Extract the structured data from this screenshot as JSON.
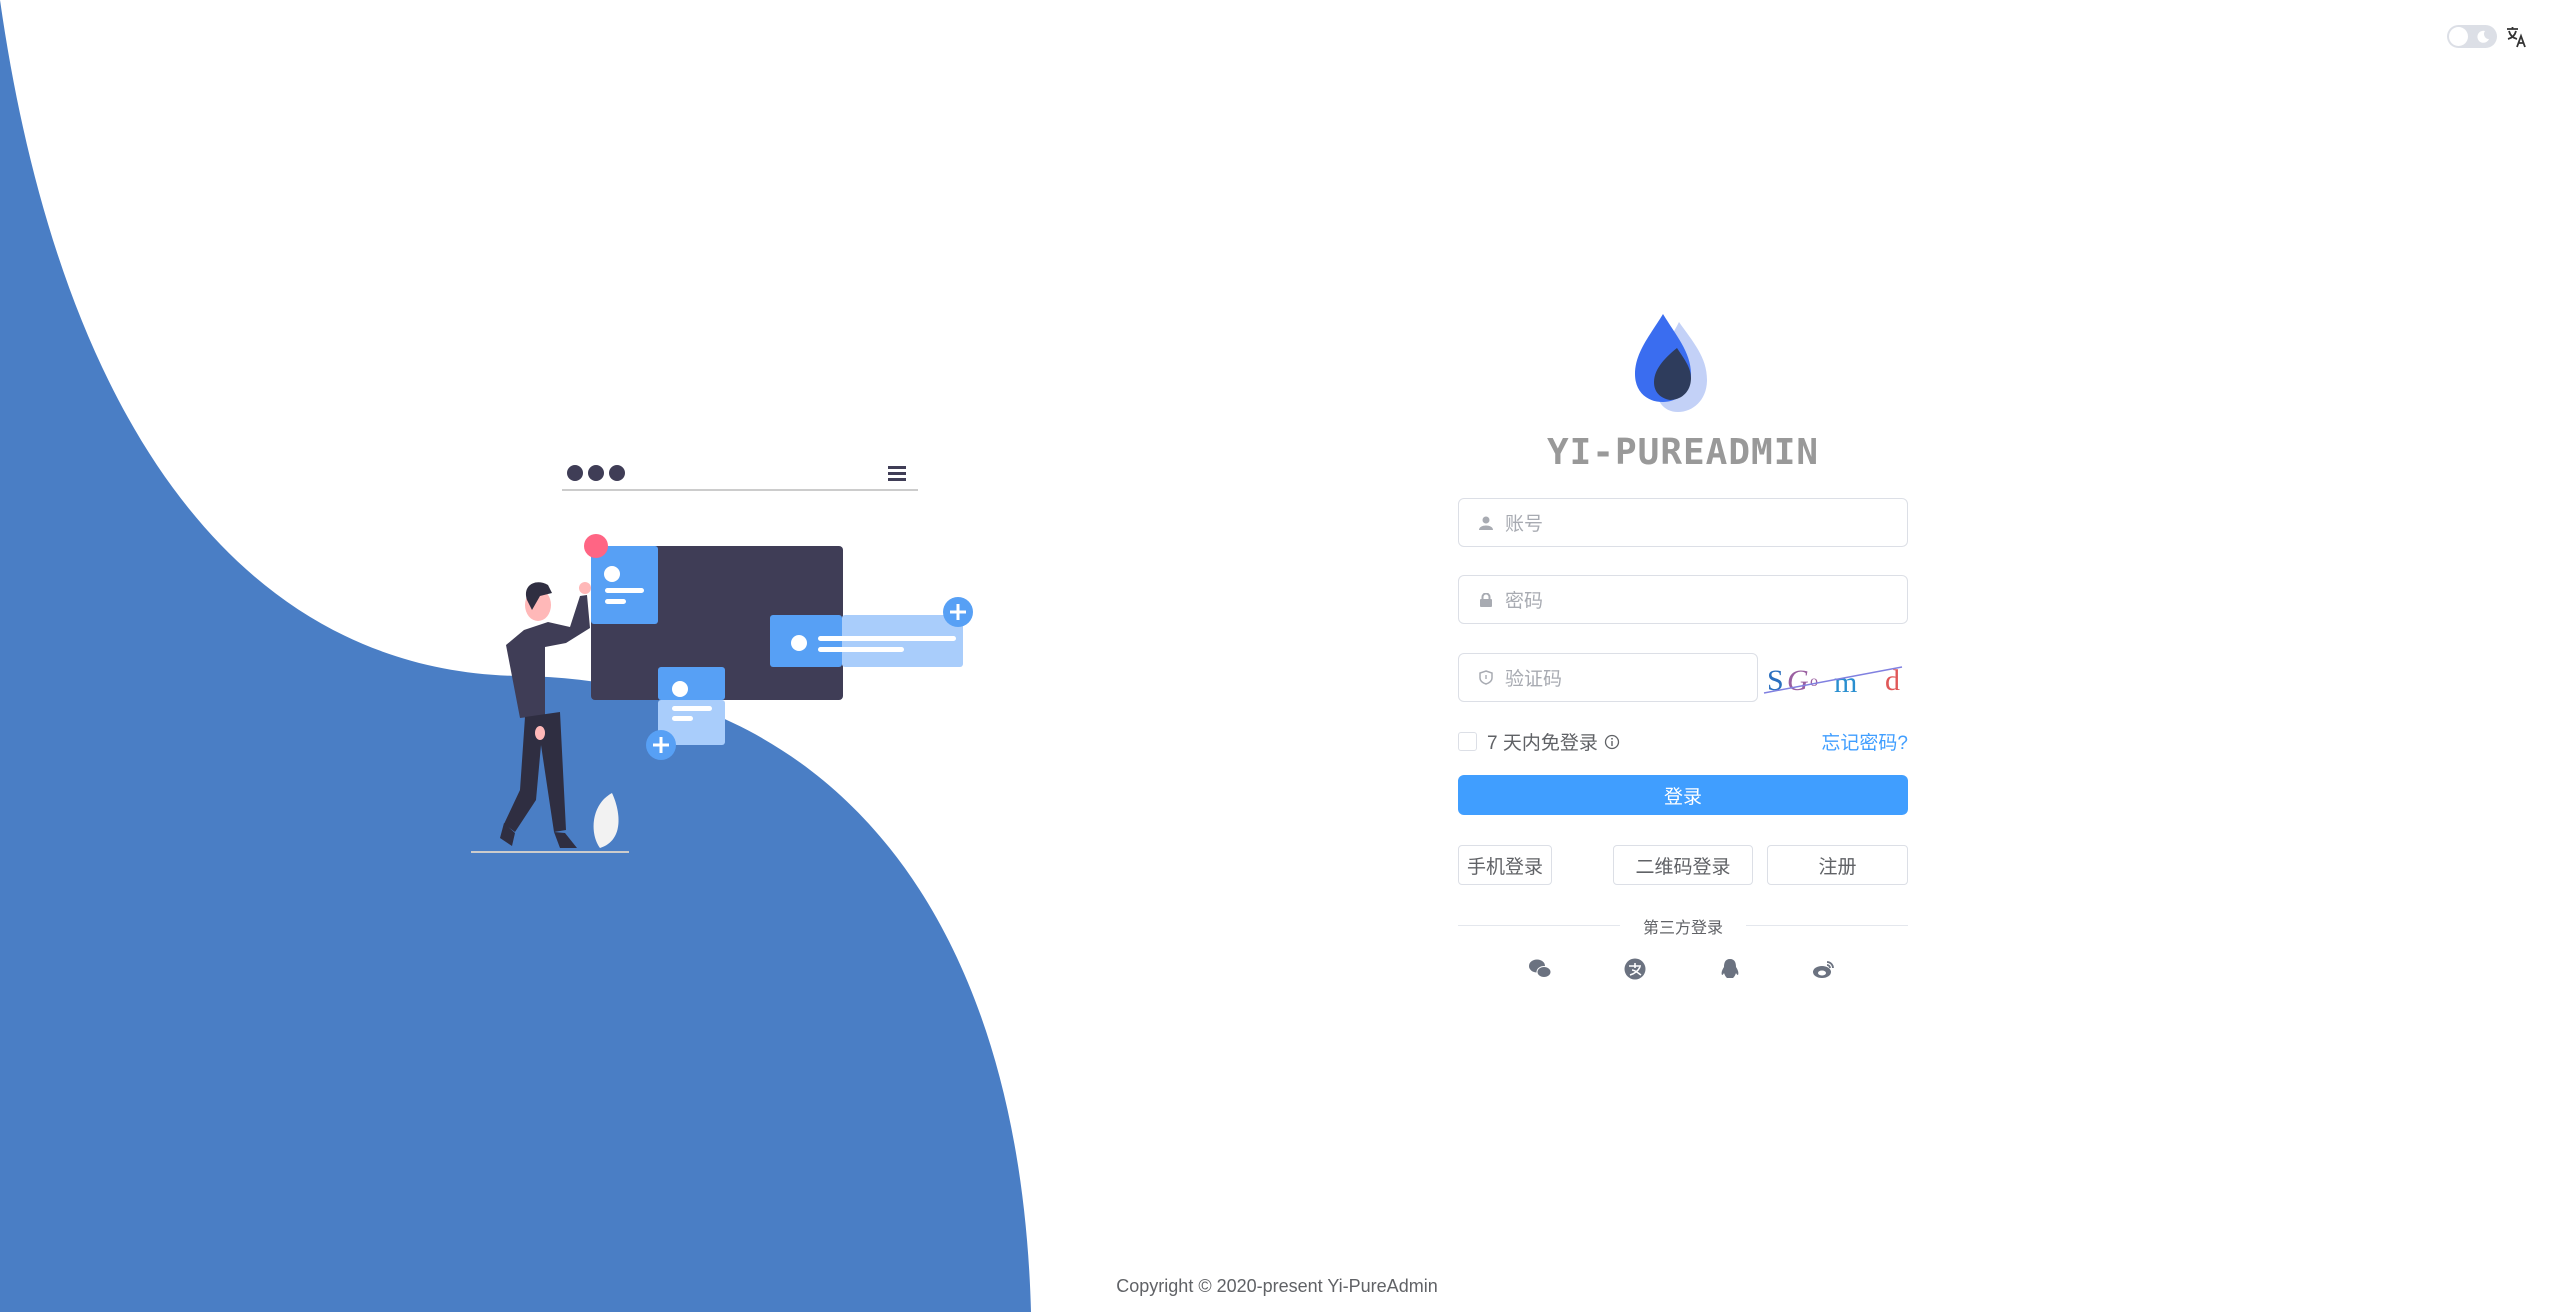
{
  "brand": {
    "title": "YI-PUREADMIN"
  },
  "header": {
    "theme_toggle": "dark-mode-toggle",
    "language_icon": "translate-icon"
  },
  "form": {
    "username_placeholder": "账号",
    "password_placeholder": "密码",
    "captcha_placeholder": "验证码",
    "captcha_text": [
      "S",
      "G",
      "o",
      "m",
      "d"
    ],
    "remember_label": "7 天内免登录",
    "forgot_label": "忘记密码?",
    "login_label": "登录",
    "alt_buttons": [
      "手机登录",
      "二维码登录",
      "注册"
    ],
    "third_party_label": "第三方登录",
    "third_party_icons": [
      "wechat-icon",
      "alipay-icon",
      "qq-icon",
      "weibo-icon"
    ]
  },
  "footer": {
    "copyright": "Copyright © 2020-present Yi-PureAdmin"
  },
  "colors": {
    "primary": "#409eff",
    "wave": "#4a7ec5",
    "illustration_dark": "#3f3d56",
    "card_blue": "#57a0f5",
    "accent_red": "#ff6584"
  }
}
